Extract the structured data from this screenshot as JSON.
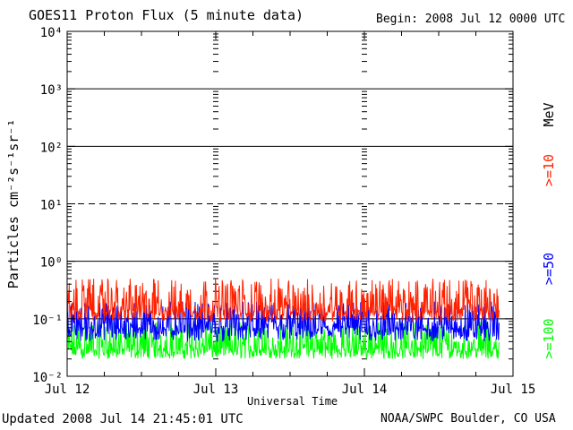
{
  "header": {
    "title": "GOES11 Proton Flux (5 minute data)",
    "begin": "Begin: 2008 Jul 12 0000 UTC"
  },
  "footer": {
    "updated": "Updated 2008 Jul 14 21:45:01 UTC",
    "source": "NOAA/SWPC Boulder, CO USA"
  },
  "colors": {
    "ge10": "#ff2200",
    "ge50": "#0000ff",
    "ge100": "#00ff00",
    "axis": "#000000"
  },
  "chart_data": {
    "type": "line",
    "title": "GOES11 Proton Flux (5 minute data)",
    "xlabel": "Universal Time",
    "ylabel": "Particles cm⁻²s⁻¹sr⁻¹",
    "yscale": "log",
    "ylim": [
      0.01,
      10000
    ],
    "ytick_labels": [
      "10⁻²",
      "10⁻¹",
      "10⁰",
      "10¹",
      "10²",
      "10³",
      "10⁴"
    ],
    "ytick_exponents": [
      -2,
      -1,
      0,
      1,
      2,
      3,
      4
    ],
    "x_tick_labels": [
      "Jul 12",
      "Jul 13",
      "Jul 14",
      "Jul 15"
    ],
    "xlim_days": [
      0,
      3
    ],
    "data_end_day": 2.906,
    "right_labels": [
      ">=10",
      ">=50",
      ">=100",
      "MeV"
    ],
    "grid": {
      "solid_lines_at": [
        0.1,
        1,
        100,
        1000
      ],
      "dashed_lines_at": [
        10
      ],
      "dotted_day_separators": true
    },
    "series": [
      {
        "name": ">=10",
        "color": "#ff2200",
        "baseline": 0.14,
        "range": [
          0.09,
          0.5
        ]
      },
      {
        "name": ">=50",
        "color": "#0000ff",
        "baseline": 0.07,
        "range": [
          0.04,
          0.2
        ]
      },
      {
        "name": ">=100",
        "color": "#00ff00",
        "baseline": 0.03,
        "range": [
          0.02,
          0.09
        ]
      }
    ]
  }
}
